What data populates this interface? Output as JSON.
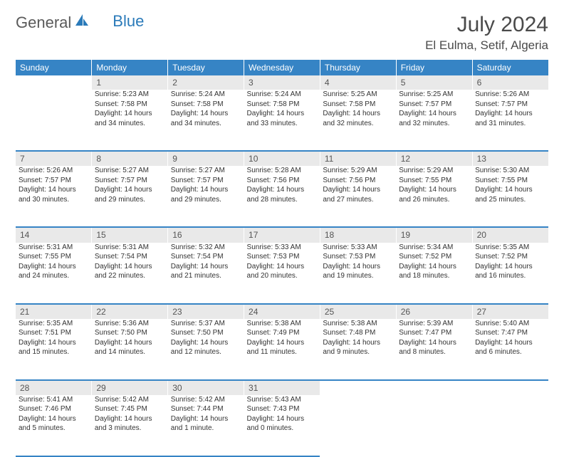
{
  "logo": {
    "text1": "General",
    "text2": "Blue"
  },
  "title": "July 2024",
  "location": "El Eulma, Setif, Algeria",
  "colors": {
    "header_bg": "#3684c5",
    "header_text": "#ffffff",
    "daynum_bg": "#e9e9e9",
    "body_text": "#333333",
    "logo_gray": "#5a5a5a",
    "logo_blue": "#2a7ab9",
    "border": "#3684c5"
  },
  "weekdays": [
    "Sunday",
    "Monday",
    "Tuesday",
    "Wednesday",
    "Thursday",
    "Friday",
    "Saturday"
  ],
  "grid": {
    "start_weekday": 1,
    "days_in_month": 31
  },
  "days": {
    "1": {
      "sunrise": "5:23 AM",
      "sunset": "7:58 PM",
      "daylight": "14 hours and 34 minutes."
    },
    "2": {
      "sunrise": "5:24 AM",
      "sunset": "7:58 PM",
      "daylight": "14 hours and 34 minutes."
    },
    "3": {
      "sunrise": "5:24 AM",
      "sunset": "7:58 PM",
      "daylight": "14 hours and 33 minutes."
    },
    "4": {
      "sunrise": "5:25 AM",
      "sunset": "7:58 PM",
      "daylight": "14 hours and 32 minutes."
    },
    "5": {
      "sunrise": "5:25 AM",
      "sunset": "7:57 PM",
      "daylight": "14 hours and 32 minutes."
    },
    "6": {
      "sunrise": "5:26 AM",
      "sunset": "7:57 PM",
      "daylight": "14 hours and 31 minutes."
    },
    "7": {
      "sunrise": "5:26 AM",
      "sunset": "7:57 PM",
      "daylight": "14 hours and 30 minutes."
    },
    "8": {
      "sunrise": "5:27 AM",
      "sunset": "7:57 PM",
      "daylight": "14 hours and 29 minutes."
    },
    "9": {
      "sunrise": "5:27 AM",
      "sunset": "7:57 PM",
      "daylight": "14 hours and 29 minutes."
    },
    "10": {
      "sunrise": "5:28 AM",
      "sunset": "7:56 PM",
      "daylight": "14 hours and 28 minutes."
    },
    "11": {
      "sunrise": "5:29 AM",
      "sunset": "7:56 PM",
      "daylight": "14 hours and 27 minutes."
    },
    "12": {
      "sunrise": "5:29 AM",
      "sunset": "7:55 PM",
      "daylight": "14 hours and 26 minutes."
    },
    "13": {
      "sunrise": "5:30 AM",
      "sunset": "7:55 PM",
      "daylight": "14 hours and 25 minutes."
    },
    "14": {
      "sunrise": "5:31 AM",
      "sunset": "7:55 PM",
      "daylight": "14 hours and 24 minutes."
    },
    "15": {
      "sunrise": "5:31 AM",
      "sunset": "7:54 PM",
      "daylight": "14 hours and 22 minutes."
    },
    "16": {
      "sunrise": "5:32 AM",
      "sunset": "7:54 PM",
      "daylight": "14 hours and 21 minutes."
    },
    "17": {
      "sunrise": "5:33 AM",
      "sunset": "7:53 PM",
      "daylight": "14 hours and 20 minutes."
    },
    "18": {
      "sunrise": "5:33 AM",
      "sunset": "7:53 PM",
      "daylight": "14 hours and 19 minutes."
    },
    "19": {
      "sunrise": "5:34 AM",
      "sunset": "7:52 PM",
      "daylight": "14 hours and 18 minutes."
    },
    "20": {
      "sunrise": "5:35 AM",
      "sunset": "7:52 PM",
      "daylight": "14 hours and 16 minutes."
    },
    "21": {
      "sunrise": "5:35 AM",
      "sunset": "7:51 PM",
      "daylight": "14 hours and 15 minutes."
    },
    "22": {
      "sunrise": "5:36 AM",
      "sunset": "7:50 PM",
      "daylight": "14 hours and 14 minutes."
    },
    "23": {
      "sunrise": "5:37 AM",
      "sunset": "7:50 PM",
      "daylight": "14 hours and 12 minutes."
    },
    "24": {
      "sunrise": "5:38 AM",
      "sunset": "7:49 PM",
      "daylight": "14 hours and 11 minutes."
    },
    "25": {
      "sunrise": "5:38 AM",
      "sunset": "7:48 PM",
      "daylight": "14 hours and 9 minutes."
    },
    "26": {
      "sunrise": "5:39 AM",
      "sunset": "7:47 PM",
      "daylight": "14 hours and 8 minutes."
    },
    "27": {
      "sunrise": "5:40 AM",
      "sunset": "7:47 PM",
      "daylight": "14 hours and 6 minutes."
    },
    "28": {
      "sunrise": "5:41 AM",
      "sunset": "7:46 PM",
      "daylight": "14 hours and 5 minutes."
    },
    "29": {
      "sunrise": "5:42 AM",
      "sunset": "7:45 PM",
      "daylight": "14 hours and 3 minutes."
    },
    "30": {
      "sunrise": "5:42 AM",
      "sunset": "7:44 PM",
      "daylight": "14 hours and 1 minute."
    },
    "31": {
      "sunrise": "5:43 AM",
      "sunset": "7:43 PM",
      "daylight": "14 hours and 0 minutes."
    }
  },
  "labels": {
    "sunrise_prefix": "Sunrise: ",
    "sunset_prefix": "Sunset: ",
    "daylight_prefix": "Daylight: "
  }
}
